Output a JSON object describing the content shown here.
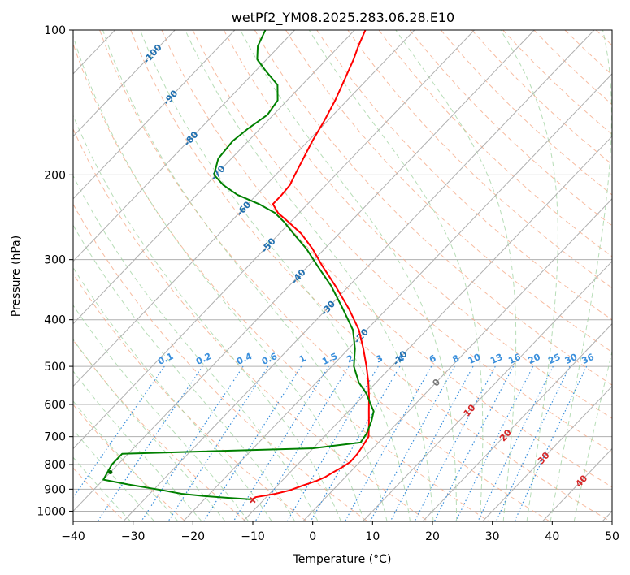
{
  "chart_data": {
    "type": "line",
    "chart_kind": "skew-T log-P diagram",
    "title": "wetPf2_YM08.2025.283.06.28.E10",
    "xlabel": "Temperature (°C)",
    "ylabel": "Pressure (hPa)",
    "xlim": [
      -40,
      50
    ],
    "ylim": [
      1050,
      100
    ],
    "y_scale": "log (inverted)",
    "x_ticks": [
      -40,
      -30,
      -20,
      -10,
      0,
      10,
      20,
      30,
      40,
      50
    ],
    "y_ticks": [
      100,
      200,
      300,
      400,
      500,
      600,
      700,
      800,
      900,
      1000
    ],
    "grid": true,
    "skew_degrees_per_log_decade": 77,
    "background_lines": {
      "isotherms": {
        "color": "#b0b0b0",
        "from": -140,
        "to": 50,
        "step": 10
      },
      "dry_adiabats": {
        "color": "#f4a582",
        "style": "dashed"
      },
      "moist_adiabats": {
        "color": "#9fd19f",
        "style": "dashed"
      },
      "mixing_ratio": {
        "color": "#3a8fdc",
        "style": "dotted",
        "labels": [
          "0.1",
          "0.2",
          "0.4",
          "0.6",
          "1",
          "1.5",
          "2",
          "3",
          "4",
          "6",
          "8",
          "10",
          "13",
          "16",
          "20",
          "25",
          "30",
          "36"
        ],
        "values": [
          0.1,
          0.2,
          0.4,
          0.6,
          1,
          1.5,
          2,
          3,
          4,
          6,
          8,
          10,
          13,
          16,
          20,
          25,
          30,
          36
        ]
      }
    },
    "isotherm_labels": {
      "color": "#1f6fb0",
      "items": [
        {
          "text": "-100",
          "T": -100,
          "p": 112
        },
        {
          "text": "-90",
          "T": -90,
          "p": 138
        },
        {
          "text": "-80",
          "T": -80,
          "p": 168
        },
        {
          "text": "-70",
          "T": -70,
          "p": 198
        },
        {
          "text": "-60",
          "T": -60,
          "p": 235
        },
        {
          "text": "-50",
          "T": -50,
          "p": 280
        },
        {
          "text": "-40",
          "T": -40,
          "p": 325
        },
        {
          "text": "-30",
          "T": -30,
          "p": 378
        },
        {
          "text": "-20",
          "T": -20,
          "p": 432
        },
        {
          "text": "-10",
          "T": -10,
          "p": 480
        },
        {
          "text": "0",
          "T": 0,
          "p": 540
        }
      ]
    },
    "dry_adiabat_labels": {
      "color": "#d62728",
      "items": [
        {
          "text": "10",
          "T": 10,
          "p": 617
        },
        {
          "text": "20",
          "T": 20,
          "p": 695
        },
        {
          "text": "30",
          "T": 30,
          "p": 775
        },
        {
          "text": "40",
          "T": 40,
          "p": 865
        }
      ]
    },
    "series": [
      {
        "color": "#ff0000",
        "points": [
          {
            "p": 945,
            "T": -12
          },
          {
            "p": 935,
            "T": -11.8
          },
          {
            "p": 920,
            "T": -9
          },
          {
            "p": 905,
            "T": -7.2
          },
          {
            "p": 885,
            "T": -5.8
          },
          {
            "p": 865,
            "T": -4.2
          },
          {
            "p": 850,
            "T": -3.4
          },
          {
            "p": 830,
            "T": -2.8
          },
          {
            "p": 810,
            "T": -2.1
          },
          {
            "p": 790,
            "T": -1.6
          },
          {
            "p": 760,
            "T": -1.7
          },
          {
            "p": 730,
            "T": -2.1
          },
          {
            "p": 700,
            "T": -2.6
          },
          {
            "p": 660,
            "T": -4.5
          },
          {
            "p": 620,
            "T": -6.6
          },
          {
            "p": 580,
            "T": -8.8
          },
          {
            "p": 540,
            "T": -11.3
          },
          {
            "p": 500,
            "T": -14.2
          },
          {
            "p": 460,
            "T": -17.5
          },
          {
            "p": 420,
            "T": -21.3
          },
          {
            "p": 380,
            "T": -26.3
          },
          {
            "p": 340,
            "T": -32.3
          },
          {
            "p": 310,
            "T": -37.5
          },
          {
            "p": 285,
            "T": -42.0
          },
          {
            "p": 265,
            "T": -46.3
          },
          {
            "p": 250,
            "T": -50.5
          },
          {
            "p": 240,
            "T": -53.5
          },
          {
            "p": 230,
            "T": -55.8
          },
          {
            "p": 220,
            "T": -55.8
          },
          {
            "p": 210,
            "T": -56.0
          },
          {
            "p": 200,
            "T": -56.8
          },
          {
            "p": 185,
            "T": -58.0
          },
          {
            "p": 170,
            "T": -59.3
          },
          {
            "p": 155,
            "T": -60.5
          },
          {
            "p": 140,
            "T": -62.0
          },
          {
            "p": 125,
            "T": -64.0
          },
          {
            "p": 115,
            "T": -65.5
          },
          {
            "p": 108,
            "T": -66.8
          },
          {
            "p": 100,
            "T": -68.2
          }
        ]
      },
      {
        "color": "#008000",
        "points": [
          {
            "p": 945,
            "T": -12.2
          },
          {
            "p": 938,
            "T": -16.3
          },
          {
            "p": 930,
            "T": -20.6
          },
          {
            "p": 920,
            "T": -24.7
          },
          {
            "p": 905,
            "T": -28.3
          },
          {
            "p": 880,
            "T": -35
          },
          {
            "p": 860,
            "T": -40
          },
          {
            "p": 800,
            "T": -41
          },
          {
            "p": 760,
            "T": -41
          },
          {
            "p": 740,
            "T": -10
          },
          {
            "p": 720,
            "T": -3
          },
          {
            "p": 690,
            "T": -3.4
          },
          {
            "p": 650,
            "T": -4.6
          },
          {
            "p": 620,
            "T": -5.8
          },
          {
            "p": 600,
            "T": -7.4
          },
          {
            "p": 570,
            "T": -9.8
          },
          {
            "p": 540,
            "T": -12.9
          },
          {
            "p": 500,
            "T": -16.3
          },
          {
            "p": 460,
            "T": -18.9
          },
          {
            "p": 420,
            "T": -22.3
          },
          {
            "p": 380,
            "T": -27.3
          },
          {
            "p": 340,
            "T": -33.0
          },
          {
            "p": 310,
            "T": -38.3
          },
          {
            "p": 285,
            "T": -43.0
          },
          {
            "p": 265,
            "T": -47.6
          },
          {
            "p": 250,
            "T": -51.2
          },
          {
            "p": 240,
            "T": -54.0
          },
          {
            "p": 230,
            "T": -58.1
          },
          {
            "p": 220,
            "T": -63.2
          },
          {
            "p": 210,
            "T": -67.1
          },
          {
            "p": 200,
            "T": -70.3
          },
          {
            "p": 185,
            "T": -72.2
          },
          {
            "p": 170,
            "T": -72.6
          },
          {
            "p": 160,
            "T": -72.0
          },
          {
            "p": 150,
            "T": -71.0
          },
          {
            "p": 140,
            "T": -71.6
          },
          {
            "p": 130,
            "T": -74.1
          },
          {
            "p": 122,
            "T": -78.1
          },
          {
            "p": 115,
            "T": -81.6
          },
          {
            "p": 108,
            "T": -83.6
          },
          {
            "p": 100,
            "T": -84.9
          }
        ]
      }
    ],
    "markers": [
      {
        "type": "x",
        "p": 948,
        "T": -11.8,
        "color": "#d62728"
      },
      {
        "type": "dot",
        "p": 830,
        "T": -40,
        "color": "#006400"
      }
    ]
  }
}
